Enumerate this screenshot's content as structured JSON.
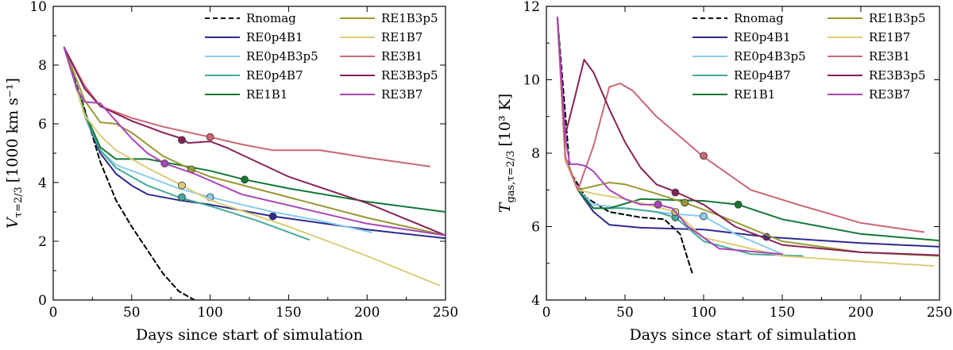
{
  "chart_data": [
    {
      "type": "line",
      "id": "left",
      "xlabel": "Days since start of simulation",
      "ylabel_main": "V",
      "ylabel_sub": "τ=2/3",
      "ylabel_units": "[1000 km s⁻¹]",
      "xlim": [
        0,
        250
      ],
      "ylim": [
        0,
        10
      ],
      "xticks": [
        "0",
        "50",
        "100",
        "150",
        "200",
        "250"
      ],
      "yticks": [
        "0",
        "2",
        "4",
        "6",
        "8",
        "10"
      ],
      "legend": "top-right, two columns",
      "series": [
        {
          "name": "Rnomag",
          "color": "#000000",
          "dash": true,
          "x": [
            7,
            20,
            30,
            40,
            50,
            60,
            70,
            80,
            90
          ],
          "y": [
            8.6,
            6.5,
            4.7,
            3.4,
            2.5,
            1.7,
            0.9,
            0.3,
            0.0
          ]
        },
        {
          "name": "RE0p4B1",
          "color": "#2e2a8f",
          "x": [
            7,
            20,
            30,
            40,
            50,
            60,
            80,
            100,
            140,
            200,
            250
          ],
          "y": [
            8.6,
            6.3,
            5.0,
            4.3,
            3.9,
            3.6,
            3.4,
            3.25,
            2.85,
            2.4,
            2.1
          ],
          "marker": [
            140,
            2.85
          ]
        },
        {
          "name": "RE0p4B3p5",
          "color": "#88ccee",
          "x": [
            7,
            20,
            30,
            40,
            60,
            80,
            100,
            140,
            170,
            203
          ],
          "y": [
            8.6,
            6.3,
            5.1,
            4.6,
            4.2,
            3.8,
            3.5,
            3.0,
            2.7,
            2.3
          ],
          "marker": [
            100,
            3.5
          ]
        },
        {
          "name": "RE0p4B7",
          "color": "#44aa99",
          "x": [
            7,
            20,
            30,
            40,
            60,
            80,
            100,
            130,
            163
          ],
          "y": [
            8.6,
            6.3,
            5.1,
            4.5,
            3.9,
            3.5,
            3.2,
            2.7,
            2.05
          ],
          "marker": [
            82,
            3.5
          ]
        },
        {
          "name": "RE1B1",
          "color": "#117733",
          "x": [
            7,
            20,
            30,
            40,
            60,
            80,
            100,
            122,
            150,
            200,
            250
          ],
          "y": [
            8.6,
            6.4,
            5.2,
            4.8,
            4.8,
            4.6,
            4.4,
            4.1,
            3.8,
            3.35,
            3.0
          ],
          "marker": [
            122,
            4.1
          ]
        },
        {
          "name": "RE1B3p5",
          "color": "#999933",
          "x": [
            7,
            20,
            30,
            40,
            50,
            60,
            70,
            88,
            100,
            150,
            200,
            250
          ],
          "y": [
            8.6,
            6.8,
            6.05,
            6.0,
            5.7,
            5.3,
            4.9,
            4.45,
            4.2,
            3.5,
            2.8,
            2.2
          ],
          "marker": [
            88,
            4.45
          ]
        },
        {
          "name": "RE1B7",
          "color": "#ddcc77",
          "x": [
            7,
            20,
            30,
            40,
            60,
            82,
            100,
            150,
            200,
            246
          ],
          "y": [
            8.6,
            6.3,
            5.6,
            5.1,
            4.5,
            3.9,
            3.4,
            2.5,
            1.5,
            0.5
          ],
          "marker": [
            82,
            3.9
          ]
        },
        {
          "name": "RE3B1",
          "color": "#cc6677",
          "x": [
            7,
            20,
            30,
            50,
            70,
            100,
            120,
            140,
            170,
            200,
            240
          ],
          "y": [
            8.6,
            7.3,
            6.6,
            6.2,
            5.9,
            5.55,
            5.3,
            5.1,
            5.1,
            4.85,
            4.55
          ],
          "marker": [
            100,
            5.55
          ]
        },
        {
          "name": "RE3B3p5",
          "color": "#882255",
          "x": [
            7,
            20,
            30,
            50,
            70,
            82,
            86,
            100,
            110,
            150,
            200,
            250
          ],
          "y": [
            8.6,
            7.2,
            6.6,
            6.1,
            5.7,
            5.5,
            5.35,
            5.4,
            5.2,
            4.2,
            3.3,
            2.2
          ],
          "marker": [
            82,
            5.45
          ]
        },
        {
          "name": "RE3B7",
          "color": "#aa44bb",
          "x": [
            7,
            15,
            20,
            30,
            40,
            50,
            60,
            71,
            90,
            120,
            160,
            200,
            250
          ],
          "y": [
            8.6,
            7.2,
            6.75,
            6.7,
            6.1,
            5.5,
            5.0,
            4.65,
            4.3,
            3.6,
            3.1,
            2.6,
            2.2
          ],
          "marker": [
            71,
            4.65
          ]
        }
      ]
    },
    {
      "type": "line",
      "id": "right",
      "xlabel": "Days since start of simulation",
      "ylabel_main": "T",
      "ylabel_sub": "gas,τ=2/3",
      "ylabel_units": "[10³ K]",
      "xlim": [
        0,
        250
      ],
      "ylim": [
        4,
        12
      ],
      "xticks": [
        "0",
        "50",
        "100",
        "150",
        "200",
        "250"
      ],
      "yticks": [
        "4",
        "6",
        "8",
        "10",
        "12"
      ],
      "legend": "top-right, two columns",
      "series": [
        {
          "name": "Rnomag",
          "color": "#000000",
          "dash": true,
          "x": [
            7,
            15,
            25,
            40,
            60,
            75,
            85,
            90,
            93
          ],
          "y": [
            11.7,
            7.5,
            6.8,
            6.4,
            6.25,
            6.2,
            5.8,
            5.1,
            4.7
          ]
        },
        {
          "name": "RE0p4B1",
          "color": "#2e2a8f",
          "x": [
            7,
            12,
            20,
            30,
            40,
            60,
            100,
            140,
            200,
            250
          ],
          "y": [
            11.7,
            7.8,
            7.0,
            6.4,
            6.05,
            5.97,
            5.92,
            5.72,
            5.55,
            5.45
          ],
          "marker": [
            140,
            5.72
          ]
        },
        {
          "name": "RE0p4B3p5",
          "color": "#88ccee",
          "x": [
            7,
            12,
            20,
            30,
            50,
            80,
            100,
            120,
            150
          ],
          "y": [
            11.7,
            7.9,
            7.0,
            6.6,
            6.5,
            6.35,
            6.28,
            5.8,
            5.25
          ],
          "marker": [
            100,
            6.28
          ]
        },
        {
          "name": "RE0p4B7",
          "color": "#44aa99",
          "x": [
            7,
            12,
            20,
            30,
            50,
            70,
            82,
            100,
            130,
            163
          ],
          "y": [
            11.7,
            7.9,
            7.0,
            6.5,
            6.5,
            6.4,
            6.25,
            5.6,
            5.25,
            5.2
          ],
          "marker": [
            82,
            6.25
          ]
        },
        {
          "name": "RE1B1",
          "color": "#117733",
          "x": [
            7,
            12,
            20,
            30,
            40,
            60,
            100,
            122,
            150,
            200,
            250
          ],
          "y": [
            11.7,
            7.9,
            7.0,
            6.5,
            6.5,
            6.75,
            6.7,
            6.6,
            6.2,
            5.8,
            5.62
          ],
          "marker": [
            122,
            6.6
          ]
        },
        {
          "name": "RE1B3p5",
          "color": "#999933",
          "x": [
            7,
            12,
            20,
            30,
            40,
            50,
            70,
            88,
            110,
            150,
            200,
            250
          ],
          "y": [
            11.7,
            7.8,
            7.0,
            7.1,
            7.2,
            7.15,
            6.9,
            6.65,
            6.3,
            5.6,
            5.3,
            5.2
          ],
          "marker": [
            88,
            6.65
          ]
        },
        {
          "name": "RE1B7",
          "color": "#ddcc77",
          "x": [
            7,
            12,
            20,
            30,
            50,
            82,
            100,
            150,
            200,
            246
          ],
          "y": [
            11.7,
            7.8,
            7.0,
            6.9,
            6.75,
            6.4,
            5.7,
            5.2,
            5.05,
            4.93
          ],
          "marker": [
            82,
            6.4
          ]
        },
        {
          "name": "RE3B1",
          "color": "#cc6677",
          "x": [
            7,
            12,
            20,
            30,
            40,
            47,
            55,
            70,
            100,
            130,
            160,
            200,
            240
          ],
          "y": [
            11.7,
            7.9,
            7.0,
            8.2,
            9.8,
            9.9,
            9.7,
            9.0,
            7.9,
            7.0,
            6.6,
            6.1,
            5.85
          ],
          "marker": [
            100,
            7.93
          ]
        },
        {
          "name": "RE3B3p5",
          "color": "#882255",
          "x": [
            7,
            12,
            18,
            24,
            30,
            40,
            50,
            60,
            70,
            82,
            100,
            120,
            150,
            200,
            250
          ],
          "y": [
            11.7,
            8.5,
            9.5,
            10.55,
            10.2,
            9.2,
            8.3,
            7.6,
            7.15,
            6.95,
            6.6,
            6.0,
            5.5,
            5.3,
            5.22
          ],
          "marker": [
            82,
            6.93
          ]
        },
        {
          "name": "RE3B7",
          "color": "#aa44bb",
          "x": [
            7,
            12,
            15,
            20,
            25,
            30,
            40,
            50,
            60,
            71,
            80,
            90,
            110,
            150
          ],
          "y": [
            11.7,
            8.4,
            7.7,
            7.7,
            7.65,
            7.5,
            7.0,
            6.75,
            6.6,
            6.6,
            6.5,
            6.0,
            5.4,
            5.25
          ],
          "marker": [
            71,
            6.6
          ]
        }
      ]
    }
  ]
}
